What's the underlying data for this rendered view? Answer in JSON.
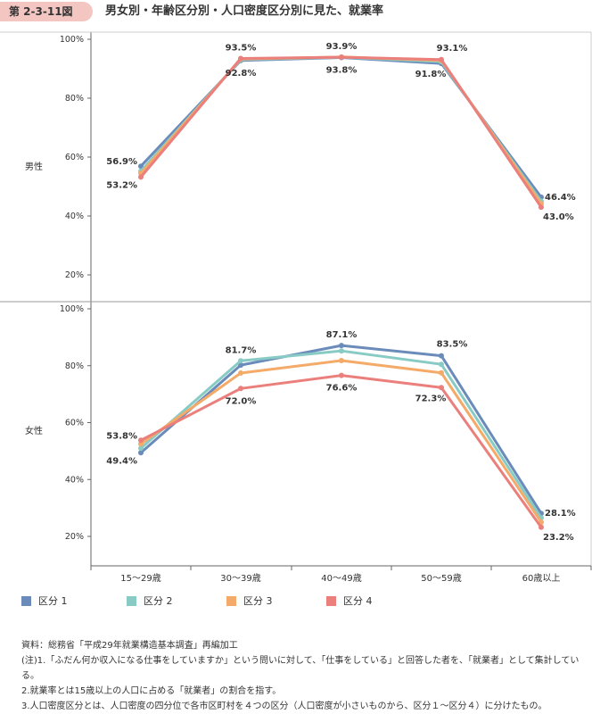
{
  "figure": {
    "number": "第 2-3-11図",
    "title": "男女別・年齢区分別・人口密度区分別に見た、就業率"
  },
  "colors": {
    "区分1": "#6b8cba",
    "区分2": "#88cbc5",
    "区分3": "#f4aa68",
    "区分4": "#ea7f7c"
  },
  "chart_data": [
    {
      "type": "line",
      "panel_label": "男性",
      "categories": [
        "15〜29歳",
        "30〜39歳",
        "40〜49歳",
        "50〜59歳",
        "60歳以上"
      ],
      "ylim": [
        15,
        100
      ],
      "yticks": [
        "20%",
        "40%",
        "60%",
        "80%",
        "100%"
      ],
      "ytick_values": [
        20,
        40,
        60,
        80,
        100
      ],
      "series": [
        {
          "name": "区分 1",
          "values": [
            56.9,
            92.8,
            93.8,
            91.8,
            46.4
          ]
        },
        {
          "name": "区分 2",
          "values": [
            55.2,
            93.1,
            93.9,
            92.4,
            45.0
          ]
        },
        {
          "name": "区分 3",
          "values": [
            54.5,
            93.3,
            94.0,
            92.8,
            44.2
          ]
        },
        {
          "name": "区分 4",
          "values": [
            53.2,
            93.5,
            93.9,
            93.1,
            43.0
          ]
        }
      ],
      "labels": [
        {
          "text": "56.9%",
          "cat": 0,
          "value": 56.9,
          "pos": "left-above"
        },
        {
          "text": "53.2%",
          "cat": 0,
          "value": 53.2,
          "pos": "left-below"
        },
        {
          "text": "93.5%",
          "cat": 1,
          "value": 93.5,
          "pos": "above"
        },
        {
          "text": "92.8%",
          "cat": 1,
          "value": 92.8,
          "pos": "below"
        },
        {
          "text": "93.9%",
          "cat": 2,
          "value": 93.9,
          "pos": "above"
        },
        {
          "text": "93.8%",
          "cat": 2,
          "value": 93.8,
          "pos": "below"
        },
        {
          "text": "93.1%",
          "cat": 3,
          "value": 93.1,
          "pos": "above-right"
        },
        {
          "text": "91.8%",
          "cat": 3,
          "value": 91.8,
          "pos": "below-left"
        },
        {
          "text": "46.4%",
          "cat": 4,
          "value": 46.4,
          "pos": "right"
        },
        {
          "text": "43.0%",
          "cat": 4,
          "value": 43.0,
          "pos": "right-below"
        }
      ]
    },
    {
      "type": "line",
      "panel_label": "女性",
      "categories": [
        "15〜29歳",
        "30〜39歳",
        "40〜49歳",
        "50〜59歳",
        "60歳以上"
      ],
      "ylim": [
        15,
        100
      ],
      "yticks": [
        "20%",
        "40%",
        "60%",
        "80%",
        "100%"
      ],
      "ytick_values": [
        20,
        40,
        60,
        80,
        100
      ],
      "series": [
        {
          "name": "区分 1",
          "values": [
            49.4,
            80.2,
            87.1,
            83.5,
            28.1
          ]
        },
        {
          "name": "区分 2",
          "values": [
            51.0,
            81.7,
            85.2,
            80.5,
            26.5
          ]
        },
        {
          "name": "区分 3",
          "values": [
            52.5,
            77.4,
            81.8,
            77.5,
            25.0
          ]
        },
        {
          "name": "区分 4",
          "values": [
            53.8,
            72.0,
            76.6,
            72.3,
            23.2
          ]
        }
      ],
      "labels": [
        {
          "text": "53.8%",
          "cat": 0,
          "value": 53.8,
          "pos": "left-above"
        },
        {
          "text": "49.4%",
          "cat": 0,
          "value": 49.4,
          "pos": "left-below"
        },
        {
          "text": "81.7%",
          "cat": 1,
          "value": 81.7,
          "pos": "above"
        },
        {
          "text": "72.0%",
          "cat": 1,
          "value": 72.0,
          "pos": "below"
        },
        {
          "text": "87.1%",
          "cat": 2,
          "value": 87.1,
          "pos": "above"
        },
        {
          "text": "76.6%",
          "cat": 2,
          "value": 76.6,
          "pos": "below"
        },
        {
          "text": "83.5%",
          "cat": 3,
          "value": 83.5,
          "pos": "above-right"
        },
        {
          "text": "72.3%",
          "cat": 3,
          "value": 72.3,
          "pos": "below-left"
        },
        {
          "text": "28.1%",
          "cat": 4,
          "value": 28.1,
          "pos": "right"
        },
        {
          "text": "23.2%",
          "cat": 4,
          "value": 23.2,
          "pos": "right-below"
        }
      ]
    }
  ],
  "legend": [
    "区分 1",
    "区分 2",
    "区分 3",
    "区分 4"
  ],
  "notes": {
    "source": "資料：総務省「平成29年就業構造基本調査」再編加工",
    "note1": "(注)1.「ふだん何か収入になる仕事をしていますか」という問いに対して、「仕事をしている」と回答した者を、「就業者」として集計している。",
    "note2": "2.就業率とは15歳以上の人口に占める「就業者」の割合を指す。",
    "note3": "3.人口密度区分とは、人口密度の四分位で各市区町村を４つの区分（人口密度が小さいものから、区分１〜区分４）に分けたもの。"
  }
}
